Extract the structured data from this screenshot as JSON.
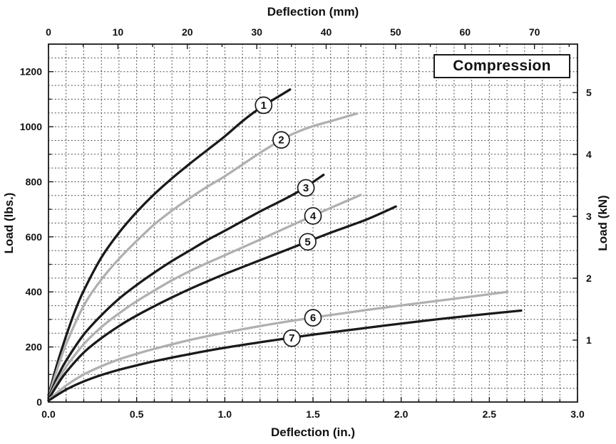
{
  "title_box": {
    "label": "Compression"
  },
  "chart_data": {
    "type": "line",
    "title": "Compression",
    "axes": {
      "top": {
        "label": "Deflection (mm)",
        "ticks": [
          0,
          10,
          20,
          30,
          40,
          50,
          60,
          70
        ],
        "mm_per_in": 25.4,
        "minor_step_mm": 5
      },
      "bottom": {
        "label": "Deflection (in.)",
        "min": 0,
        "max": 3.0,
        "ticks": [
          0,
          0.5,
          1.0,
          1.5,
          2.0,
          2.5,
          3.0
        ],
        "tick_labels": [
          "0.0",
          "0.5",
          "1.0",
          "1.5",
          "2.0",
          "2.5",
          "3.0"
        ],
        "minor_step": 0.1
      },
      "left": {
        "label": "Load (lbs.)",
        "min": 0,
        "max": 1300,
        "ticks": [
          0,
          200,
          400,
          600,
          800,
          1000,
          1200
        ],
        "minor_step": 100
      },
      "right": {
        "label": "Load (kN)",
        "ticks": [
          1,
          2,
          3,
          4,
          5
        ],
        "lbs_per_kn": 224.809
      }
    },
    "grid": {
      "x_step": 0.1,
      "y_step": 50,
      "style": "dotted"
    },
    "colors": {
      "black_curve": "#1a1a1a",
      "gray_curve": "#b0b0b0",
      "axis": "#1a1a1a",
      "grid": "#4a4a4a"
    },
    "series": [
      {
        "id": "1",
        "color": "#1a1a1a",
        "label_x": 1.22,
        "label_y": 1078,
        "points": [
          [
            0,
            25
          ],
          [
            0.05,
            140
          ],
          [
            0.1,
            240
          ],
          [
            0.15,
            330
          ],
          [
            0.2,
            405
          ],
          [
            0.3,
            525
          ],
          [
            0.4,
            615
          ],
          [
            0.5,
            690
          ],
          [
            0.6,
            755
          ],
          [
            0.7,
            812
          ],
          [
            0.8,
            865
          ],
          [
            0.9,
            915
          ],
          [
            1.0,
            965
          ],
          [
            1.1,
            1020
          ],
          [
            1.2,
            1068
          ],
          [
            1.3,
            1108
          ],
          [
            1.37,
            1135
          ]
        ]
      },
      {
        "id": "2",
        "color": "#b0b0b0",
        "label_x": 1.32,
        "label_y": 952,
        "points": [
          [
            0,
            20
          ],
          [
            0.05,
            120
          ],
          [
            0.1,
            210
          ],
          [
            0.2,
            350
          ],
          [
            0.3,
            445
          ],
          [
            0.4,
            520
          ],
          [
            0.5,
            585
          ],
          [
            0.6,
            645
          ],
          [
            0.7,
            695
          ],
          [
            0.8,
            740
          ],
          [
            0.9,
            782
          ],
          [
            1.0,
            820
          ],
          [
            1.2,
            905
          ],
          [
            1.32,
            952
          ],
          [
            1.4,
            978
          ],
          [
            1.5,
            1002
          ],
          [
            1.6,
            1020
          ],
          [
            1.75,
            1048
          ]
        ]
      },
      {
        "id": "3",
        "color": "#1a1a1a",
        "label_x": 1.46,
        "label_y": 778,
        "points": [
          [
            0,
            15
          ],
          [
            0.05,
            90
          ],
          [
            0.1,
            150
          ],
          [
            0.2,
            245
          ],
          [
            0.3,
            315
          ],
          [
            0.4,
            375
          ],
          [
            0.5,
            425
          ],
          [
            0.6,
            470
          ],
          [
            0.7,
            512
          ],
          [
            0.8,
            550
          ],
          [
            0.9,
            588
          ],
          [
            1.0,
            622
          ],
          [
            1.2,
            692
          ],
          [
            1.4,
            758
          ],
          [
            1.56,
            825
          ]
        ]
      },
      {
        "id": "4",
        "color": "#b0b0b0",
        "label_x": 1.5,
        "label_y": 676,
        "points": [
          [
            0,
            12
          ],
          [
            0.05,
            75
          ],
          [
            0.1,
            128
          ],
          [
            0.2,
            210
          ],
          [
            0.3,
            272
          ],
          [
            0.4,
            322
          ],
          [
            0.5,
            366
          ],
          [
            0.6,
            405
          ],
          [
            0.7,
            442
          ],
          [
            0.8,
            475
          ],
          [
            0.9,
            505
          ],
          [
            1.0,
            533
          ],
          [
            1.2,
            590
          ],
          [
            1.4,
            648
          ],
          [
            1.6,
            705
          ],
          [
            1.77,
            752
          ]
        ]
      },
      {
        "id": "5",
        "color": "#1a1a1a",
        "label_x": 1.47,
        "label_y": 582,
        "points": [
          [
            0,
            10
          ],
          [
            0.05,
            62
          ],
          [
            0.1,
            108
          ],
          [
            0.2,
            180
          ],
          [
            0.3,
            232
          ],
          [
            0.4,
            276
          ],
          [
            0.5,
            314
          ],
          [
            0.6,
            348
          ],
          [
            0.7,
            380
          ],
          [
            0.8,
            410
          ],
          [
            0.9,
            438
          ],
          [
            1.0,
            465
          ],
          [
            1.2,
            515
          ],
          [
            1.4,
            565
          ],
          [
            1.6,
            615
          ],
          [
            1.8,
            662
          ],
          [
            1.97,
            710
          ]
        ]
      },
      {
        "id": "6",
        "color": "#b0b0b0",
        "label_x": 1.5,
        "label_y": 306,
        "points": [
          [
            0,
            8
          ],
          [
            0.1,
            60
          ],
          [
            0.2,
            100
          ],
          [
            0.3,
            130
          ],
          [
            0.4,
            155
          ],
          [
            0.5,
            175
          ],
          [
            0.6,
            193
          ],
          [
            0.8,
            225
          ],
          [
            1.0,
            252
          ],
          [
            1.2,
            276
          ],
          [
            1.4,
            297
          ],
          [
            1.6,
            316
          ],
          [
            1.8,
            334
          ],
          [
            2.0,
            351
          ],
          [
            2.2,
            367
          ],
          [
            2.4,
            383
          ],
          [
            2.6,
            400
          ]
        ]
      },
      {
        "id": "7",
        "color": "#1a1a1a",
        "label_x": 1.38,
        "label_y": 232,
        "points": [
          [
            0,
            5
          ],
          [
            0.1,
            45
          ],
          [
            0.2,
            75
          ],
          [
            0.3,
            98
          ],
          [
            0.4,
            117
          ],
          [
            0.5,
            133
          ],
          [
            0.6,
            148
          ],
          [
            0.8,
            174
          ],
          [
            1.0,
            197
          ],
          [
            1.2,
            217
          ],
          [
            1.4,
            236
          ],
          [
            1.6,
            253
          ],
          [
            1.8,
            269
          ],
          [
            2.0,
            285
          ],
          [
            2.2,
            300
          ],
          [
            2.4,
            314
          ],
          [
            2.68,
            332
          ]
        ]
      }
    ]
  }
}
